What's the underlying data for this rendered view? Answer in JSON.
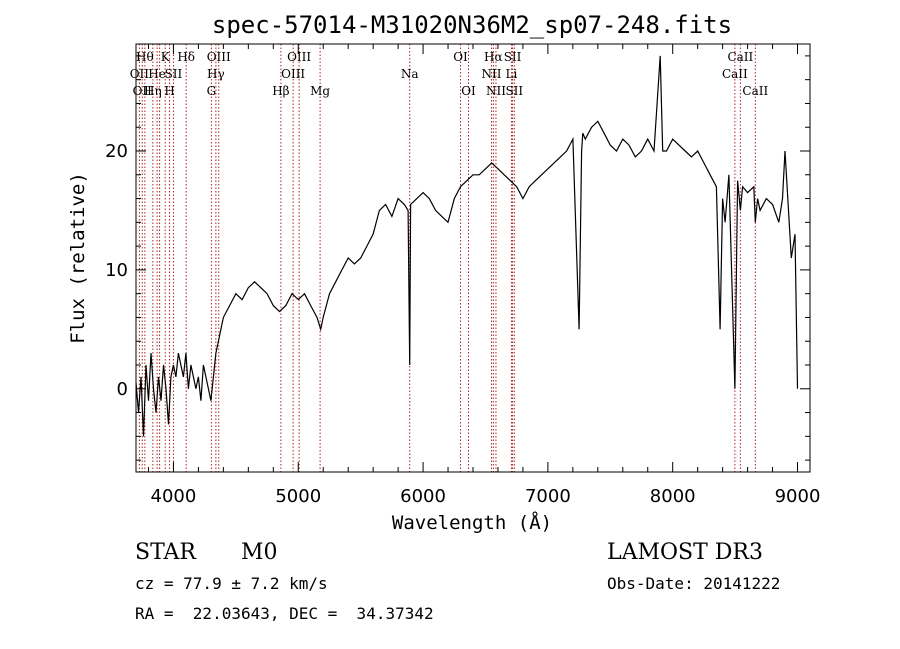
{
  "chart_data": {
    "type": "line",
    "title": "spec-57014-M31020N36M2_sp07-248.fits",
    "xlabel": "Wavelength (Å)",
    "ylabel": "Flux (relative)",
    "xlim": [
      3700,
      9100
    ],
    "ylim": [
      -7,
      29
    ],
    "xticks": [
      4000,
      5000,
      6000,
      7000,
      8000,
      9000
    ],
    "yticks": [
      0,
      10,
      20
    ],
    "series": [
      {
        "x": [
          3700,
          3720,
          3740,
          3760,
          3780,
          3800,
          3820,
          3840,
          3860,
          3880,
          3900,
          3920,
          3940,
          3960,
          3980,
          4000,
          4020,
          4040,
          4060,
          4080,
          4100,
          4120,
          4140,
          4160,
          4180,
          4200,
          4220,
          4240,
          4260,
          4280,
          4300,
          4320,
          4340,
          4360,
          4380,
          4400,
          4450,
          4500,
          4550,
          4600,
          4650,
          4700,
          4750,
          4800,
          4850,
          4900,
          4950,
          5000,
          5050,
          5100,
          5150,
          5180,
          5200,
          5250,
          5300,
          5350,
          5400,
          5450,
          5500,
          5550,
          5600,
          5650,
          5700,
          5750,
          5800,
          5850,
          5880,
          5893,
          5900,
          5950,
          6000,
          6050,
          6100,
          6150,
          6200,
          6250,
          6300,
          6350,
          6400,
          6450,
          6500,
          6550,
          6600,
          6650,
          6700,
          6750,
          6800,
          6850,
          6900,
          6950,
          7000,
          7050,
          7100,
          7150,
          7200,
          7250,
          7270,
          7280,
          7300,
          7350,
          7400,
          7450,
          7500,
          7550,
          7600,
          7650,
          7700,
          7750,
          7800,
          7850,
          7900,
          7920,
          7950,
          8000,
          8050,
          8100,
          8150,
          8200,
          8250,
          8300,
          8350,
          8380,
          8400,
          8420,
          8450,
          8498,
          8520,
          8542,
          8560,
          8600,
          8650,
          8662,
          8680,
          8700,
          8750,
          8800,
          8850,
          8880,
          8900,
          8950,
          8980,
          9000
        ],
        "y": [
          0.5,
          -2,
          1,
          -4,
          2,
          -1,
          3,
          0,
          -2,
          1,
          -1,
          2,
          0,
          -3,
          1,
          2,
          1,
          3,
          2,
          1,
          3,
          0,
          2,
          1,
          0,
          1,
          -1,
          2,
          1,
          0,
          -1,
          1,
          3,
          4,
          5,
          6,
          7,
          8,
          7.5,
          8.5,
          9,
          8.5,
          8,
          7,
          6.5,
          7,
          8,
          7.5,
          8,
          7,
          6,
          5,
          6,
          8,
          9,
          10,
          11,
          10.5,
          11,
          12,
          13,
          15,
          15.5,
          14.5,
          16,
          15.5,
          15,
          2,
          15.5,
          16,
          16.5,
          16,
          15,
          14.5,
          14,
          16,
          17,
          17.5,
          18,
          18,
          18.5,
          19,
          18.5,
          18,
          17.5,
          17,
          16,
          17,
          17.5,
          18,
          18.5,
          19,
          19.5,
          20,
          21,
          5,
          20,
          21.5,
          21,
          22,
          22.5,
          21.5,
          20.5,
          20,
          21,
          20.5,
          19.5,
          20,
          21,
          20,
          28,
          20,
          20,
          21,
          20.5,
          20,
          19.5,
          20,
          19,
          18,
          17,
          5,
          16,
          14,
          18,
          0,
          17.5,
          15,
          17,
          16.5,
          17,
          14,
          16,
          15,
          16,
          15.5,
          14,
          16,
          20,
          11,
          13,
          0
        ],
        "color": "#000000"
      }
    ],
    "spectral_lines": [
      {
        "wl": 3727,
        "label": "OII",
        "row": 2
      },
      {
        "wl": 3750,
        "label": "OII",
        "row": 3
      },
      {
        "wl": 3771,
        "label": "Hθ",
        "row": 1
      },
      {
        "wl": 3835,
        "label": "Hη",
        "row": 3
      },
      {
        "wl": 3869,
        "label": "He",
        "row": 2
      },
      {
        "wl": 3889,
        "label": "",
        "row": 0
      },
      {
        "wl": 3934,
        "label": "K",
        "row": 1
      },
      {
        "wl": 3969,
        "label": "H",
        "row": 3
      },
      {
        "wl": 4000,
        "label": "SII",
        "row": 2
      },
      {
        "wl": 4102,
        "label": "Hδ",
        "row": 1
      },
      {
        "wl": 4304,
        "label": "G",
        "row": 3
      },
      {
        "wl": 4340,
        "label": "Hγ",
        "row": 2
      },
      {
        "wl": 4363,
        "label": "OIII",
        "row": 1
      },
      {
        "wl": 4861,
        "label": "Hβ",
        "row": 3
      },
      {
        "wl": 4959,
        "label": "OIII",
        "row": 2
      },
      {
        "wl": 5007,
        "label": "OIII",
        "row": 1
      },
      {
        "wl": 5175,
        "label": "Mg",
        "row": 3
      },
      {
        "wl": 5893,
        "label": "Na",
        "row": 2
      },
      {
        "wl": 6300,
        "label": "OI",
        "row": 1
      },
      {
        "wl": 6364,
        "label": "OI",
        "row": 3
      },
      {
        "wl": 6548,
        "label": "NII",
        "row": 2
      },
      {
        "wl": 6563,
        "label": "Hα",
        "row": 1
      },
      {
        "wl": 6584,
        "label": "NII",
        "row": 3
      },
      {
        "wl": 6708,
        "label": "Li",
        "row": 2
      },
      {
        "wl": 6717,
        "label": "SII",
        "row": 1
      },
      {
        "wl": 6731,
        "label": "SII",
        "row": 3
      },
      {
        "wl": 8498,
        "label": "CaII",
        "row": 2
      },
      {
        "wl": 8542,
        "label": "CaII",
        "row": 1
      },
      {
        "wl": 8662,
        "label": "CaII",
        "row": 3
      }
    ],
    "line_color": "#b22222"
  },
  "info": {
    "class": "STAR",
    "subclass": "M0",
    "survey": "LAMOST DR3",
    "cz": "cz = 77.9 ± 7.2 km/s",
    "obs_date": "Obs-Date: 20141222",
    "coords": "RA =  22.03643, DEC =  34.37342"
  }
}
